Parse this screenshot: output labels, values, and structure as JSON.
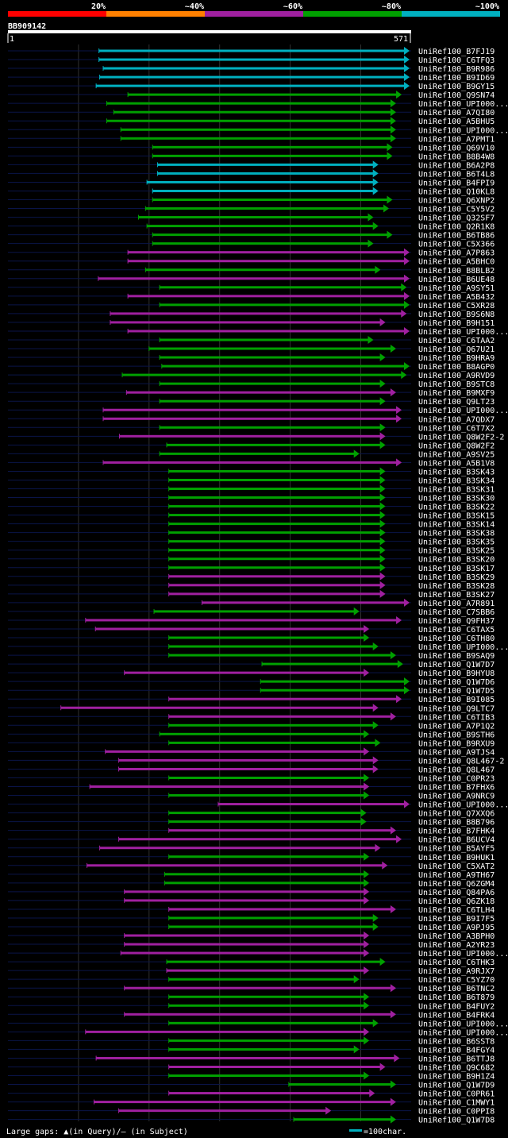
{
  "chart_data": {
    "type": "alignment",
    "query_name": "BB909142",
    "query_start": "1",
    "query_end": "571",
    "identity_legend": [
      {
        "label": "20%",
        "color": "#ff0000"
      },
      {
        "label": "~40%",
        "color": "#ff8000"
      },
      {
        "label": "~60%",
        "color": "#a020a0"
      },
      {
        "label": "~80%",
        "color": "#00a000"
      },
      {
        "label": "~100%",
        "color": "#00b0c0"
      }
    ],
    "footer_gap_text": "Large gaps: ▲(in Query)/– (in Subject)",
    "scale_label": "=100char.",
    "hits": [
      {
        "name": "UniRef100_B7FJ19",
        "start": 129,
        "end": 575,
        "color": "cyan"
      },
      {
        "name": "UniRef100_C6TFQ3",
        "start": 129,
        "end": 575,
        "color": "cyan"
      },
      {
        "name": "UniRef100_B9R986",
        "start": 135,
        "end": 575,
        "color": "cyan"
      },
      {
        "name": "UniRef100_B9ID69",
        "start": 130,
        "end": 575,
        "color": "cyan"
      },
      {
        "name": "UniRef100_B9GY15",
        "start": 125,
        "end": 575,
        "color": "cyan"
      },
      {
        "name": "UniRef100_Q9SN74",
        "start": 170,
        "end": 558,
        "color": "green"
      },
      {
        "name": "UniRef100_UPI000...",
        "start": 140,
        "end": 550,
        "color": "green"
      },
      {
        "name": "UniRef100_A7QI80",
        "start": 150,
        "end": 550,
        "color": "green"
      },
      {
        "name": "UniRef100_A5BHU5",
        "start": 140,
        "end": 550,
        "color": "green"
      },
      {
        "name": "UniRef100_UPI000...",
        "start": 160,
        "end": 550,
        "color": "green"
      },
      {
        "name": "UniRef100_A7PMT1",
        "start": 160,
        "end": 550,
        "color": "green"
      },
      {
        "name": "UniRef100_Q69V10",
        "start": 205,
        "end": 545,
        "color": "green"
      },
      {
        "name": "UniRef100_B8B4W8",
        "start": 205,
        "end": 545,
        "color": "green"
      },
      {
        "name": "UniRef100_B6A2P8",
        "start": 212,
        "end": 525,
        "color": "cyan"
      },
      {
        "name": "UniRef100_B6T4L8",
        "start": 212,
        "end": 525,
        "color": "cyan"
      },
      {
        "name": "UniRef100_B4FPI9",
        "start": 197,
        "end": 525,
        "color": "cyan"
      },
      {
        "name": "UniRef100_Q10KL8",
        "start": 205,
        "end": 525,
        "color": "cyan"
      },
      {
        "name": "UniRef100_Q6XNP2",
        "start": 205,
        "end": 545,
        "color": "green"
      },
      {
        "name": "UniRef100_C5Y5V2",
        "start": 195,
        "end": 540,
        "color": "green"
      },
      {
        "name": "UniRef100_Q32SF7",
        "start": 185,
        "end": 518,
        "color": "green"
      },
      {
        "name": "UniRef100_Q2R1K8",
        "start": 197,
        "end": 525,
        "color": "green"
      },
      {
        "name": "UniRef100_B6TB86",
        "start": 205,
        "end": 545,
        "color": "green"
      },
      {
        "name": "UniRef100_C5X366",
        "start": 205,
        "end": 518,
        "color": "green"
      },
      {
        "name": "UniRef100_A7P863",
        "start": 170,
        "end": 575,
        "color": "purple"
      },
      {
        "name": "UniRef100_A5BHC0",
        "start": 170,
        "end": 575,
        "color": "purple"
      },
      {
        "name": "UniRef100_B8BLB2",
        "start": 195,
        "end": 528,
        "color": "green"
      },
      {
        "name": "UniRef100_B6UE48",
        "start": 128,
        "end": 575,
        "color": "purple"
      },
      {
        "name": "UniRef100_A9SY51",
        "start": 215,
        "end": 565,
        "color": "green"
      },
      {
        "name": "UniRef100_A5B432",
        "start": 170,
        "end": 575,
        "color": "purple"
      },
      {
        "name": "UniRef100_C5XR28",
        "start": 215,
        "end": 575,
        "color": "green"
      },
      {
        "name": "UniRef100_B9S6N8",
        "start": 145,
        "end": 565,
        "color": "purple"
      },
      {
        "name": "UniRef100_B9H151",
        "start": 145,
        "end": 535,
        "color": "purple"
      },
      {
        "name": "UniRef100_UPI000...",
        "start": 170,
        "end": 575,
        "color": "purple"
      },
      {
        "name": "UniRef100_C6TAA2",
        "start": 215,
        "end": 518,
        "color": "green"
      },
      {
        "name": "UniRef100_Q67U21",
        "start": 200,
        "end": 550,
        "color": "green"
      },
      {
        "name": "UniRef100_B9HRA9",
        "start": 215,
        "end": 535,
        "color": "green"
      },
      {
        "name": "UniRef100_B8AGP0",
        "start": 218,
        "end": 575,
        "color": "green"
      },
      {
        "name": "UniRef100_A9RVD9",
        "start": 162,
        "end": 565,
        "color": "green"
      },
      {
        "name": "UniRef100_B9STC8",
        "start": 215,
        "end": 535,
        "color": "green"
      },
      {
        "name": "UniRef100_B9MXF9",
        "start": 168,
        "end": 550,
        "color": "purple"
      },
      {
        "name": "UniRef100_Q9LT23",
        "start": 215,
        "end": 535,
        "color": "green"
      },
      {
        "name": "UniRef100_UPI000...",
        "start": 135,
        "end": 558,
        "color": "purple"
      },
      {
        "name": "UniRef100_A7QDX7",
        "start": 135,
        "end": 558,
        "color": "purple"
      },
      {
        "name": "UniRef100_C6T7X2",
        "start": 215,
        "end": 535,
        "color": "green"
      },
      {
        "name": "UniRef100_Q8W2F2-2",
        "start": 158,
        "end": 535,
        "color": "purple"
      },
      {
        "name": "UniRef100_Q8W2F2",
        "start": 225,
        "end": 535,
        "color": "green"
      },
      {
        "name": "UniRef100_A9SV25",
        "start": 215,
        "end": 498,
        "color": "green"
      },
      {
        "name": "UniRef100_A5B1V8",
        "start": 135,
        "end": 558,
        "color": "purple"
      },
      {
        "name": "UniRef100_B3SK43",
        "start": 228,
        "end": 535,
        "color": "green"
      },
      {
        "name": "UniRef100_B3SK34",
        "start": 228,
        "end": 535,
        "color": "green"
      },
      {
        "name": "UniRef100_B3SK31",
        "start": 228,
        "end": 535,
        "color": "green"
      },
      {
        "name": "UniRef100_B3SK30",
        "start": 228,
        "end": 535,
        "color": "green"
      },
      {
        "name": "UniRef100_B3SK22",
        "start": 228,
        "end": 535,
        "color": "green"
      },
      {
        "name": "UniRef100_B3SK15",
        "start": 228,
        "end": 535,
        "color": "green"
      },
      {
        "name": "UniRef100_B3SK14",
        "start": 228,
        "end": 535,
        "color": "green"
      },
      {
        "name": "UniRef100_B3SK38",
        "start": 228,
        "end": 535,
        "color": "green"
      },
      {
        "name": "UniRef100_B3SK35",
        "start": 228,
        "end": 535,
        "color": "green"
      },
      {
        "name": "UniRef100_B3SK25",
        "start": 228,
        "end": 535,
        "color": "green"
      },
      {
        "name": "UniRef100_B3SK20",
        "start": 228,
        "end": 535,
        "color": "green"
      },
      {
        "name": "UniRef100_B3SK17",
        "start": 228,
        "end": 535,
        "color": "green"
      },
      {
        "name": "UniRef100_B3SK29",
        "start": 228,
        "end": 535,
        "color": "purple"
      },
      {
        "name": "UniRef100_B3SK28",
        "start": 228,
        "end": 535,
        "color": "purple"
      },
      {
        "name": "UniRef100_B3SK27",
        "start": 228,
        "end": 535,
        "color": "purple"
      },
      {
        "name": "UniRef100_A7R891",
        "start": 275,
        "end": 575,
        "color": "purple"
      },
      {
        "name": "UniRef100_C7SBB6",
        "start": 207,
        "end": 498,
        "color": "green"
      },
      {
        "name": "UniRef100_Q9FH37",
        "start": 110,
        "end": 558,
        "color": "purple"
      },
      {
        "name": "UniRef100_C6TAX5",
        "start": 124,
        "end": 512,
        "color": "purple"
      },
      {
        "name": "UniRef100_C6TH80",
        "start": 228,
        "end": 512,
        "color": "green"
      },
      {
        "name": "UniRef100_UPI000...",
        "start": 228,
        "end": 525,
        "color": "green"
      },
      {
        "name": "UniRef100_B9SAQ9",
        "start": 228,
        "end": 550,
        "color": "green"
      },
      {
        "name": "UniRef100_Q1W7D7",
        "start": 360,
        "end": 560,
        "color": "green"
      },
      {
        "name": "UniRef100_B9HYU8",
        "start": 165,
        "end": 512,
        "color": "purple"
      },
      {
        "name": "UniRef100_Q1W7D6",
        "start": 358,
        "end": 570,
        "color": "green"
      },
      {
        "name": "UniRef100_Q1W7D5",
        "start": 358,
        "end": 570,
        "color": "green"
      },
      {
        "name": "UniRef100_B9I085",
        "start": 228,
        "end": 558,
        "color": "purple"
      },
      {
        "name": "UniRef100_Q9LTC7",
        "start": 75,
        "end": 525,
        "color": "purple"
      },
      {
        "name": "UniRef100_C6TIB3",
        "start": 228,
        "end": 550,
        "color": "purple"
      },
      {
        "name": "UniRef100_A7P1Q2",
        "start": 228,
        "end": 525,
        "color": "green"
      },
      {
        "name": "UniRef100_B9STH6",
        "start": 215,
        "end": 512,
        "color": "green"
      },
      {
        "name": "UniRef100_B9RXU9",
        "start": 228,
        "end": 528,
        "color": "green"
      },
      {
        "name": "UniRef100_A9TJS4",
        "start": 138,
        "end": 512,
        "color": "purple"
      },
      {
        "name": "UniRef100_Q8L467-2",
        "start": 157,
        "end": 525,
        "color": "purple"
      },
      {
        "name": "UniRef100_Q8L467",
        "start": 157,
        "end": 525,
        "color": "purple"
      },
      {
        "name": "UniRef100_C0PR23",
        "start": 228,
        "end": 512,
        "color": "green"
      },
      {
        "name": "UniRef100_B7FHX6",
        "start": 116,
        "end": 512,
        "color": "purple"
      },
      {
        "name": "UniRef100_A9NRC9",
        "start": 228,
        "end": 512,
        "color": "green"
      },
      {
        "name": "UniRef100_UPI000...",
        "start": 298,
        "end": 575,
        "color": "purple"
      },
      {
        "name": "UniRef100_Q7XXQ6",
        "start": 228,
        "end": 508,
        "color": "green"
      },
      {
        "name": "UniRef100_B8B796",
        "start": 228,
        "end": 508,
        "color": "green"
      },
      {
        "name": "UniRef100_B7FHK4",
        "start": 228,
        "end": 550,
        "color": "purple"
      },
      {
        "name": "UniRef100_B6UCV4",
        "start": 157,
        "end": 558,
        "color": "purple"
      },
      {
        "name": "UniRef100_B5AYF5",
        "start": 130,
        "end": 528,
        "color": "purple"
      },
      {
        "name": "UniRef100_B9HUK1",
        "start": 228,
        "end": 512,
        "color": "green"
      },
      {
        "name": "UniRef100_C5XAT2",
        "start": 112,
        "end": 538,
        "color": "purple"
      },
      {
        "name": "UniRef100_A9TH67",
        "start": 222,
        "end": 512,
        "color": "green"
      },
      {
        "name": "UniRef100_Q6ZGM4",
        "start": 222,
        "end": 512,
        "color": "green"
      },
      {
        "name": "UniRef100_Q84PA6",
        "start": 165,
        "end": 512,
        "color": "purple"
      },
      {
        "name": "UniRef100_Q6ZK18",
        "start": 165,
        "end": 512,
        "color": "purple"
      },
      {
        "name": "UniRef100_C6TLH4",
        "start": 228,
        "end": 550,
        "color": "purple"
      },
      {
        "name": "UniRef100_B9I7F5",
        "start": 228,
        "end": 525,
        "color": "green"
      },
      {
        "name": "UniRef100_A9PJ95",
        "start": 228,
        "end": 525,
        "color": "green"
      },
      {
        "name": "UniRef100_A3BPH0",
        "start": 165,
        "end": 512,
        "color": "purple"
      },
      {
        "name": "UniRef100_A2YR23",
        "start": 165,
        "end": 512,
        "color": "purple"
      },
      {
        "name": "UniRef100_UPI000...",
        "start": 160,
        "end": 512,
        "color": "purple"
      },
      {
        "name": "UniRef100_C6THK3",
        "start": 225,
        "end": 535,
        "color": "green"
      },
      {
        "name": "UniRef100_A9RJX7",
        "start": 225,
        "end": 512,
        "color": "purple"
      },
      {
        "name": "UniRef100_C5YZ70",
        "start": 228,
        "end": 498,
        "color": "green"
      },
      {
        "name": "UniRef100_B6TNC2",
        "start": 165,
        "end": 550,
        "color": "purple"
      },
      {
        "name": "UniRef100_B6T879",
        "start": 228,
        "end": 512,
        "color": "green"
      },
      {
        "name": "UniRef100_B4FUY2",
        "start": 228,
        "end": 512,
        "color": "green"
      },
      {
        "name": "UniRef100_B4FRK4",
        "start": 165,
        "end": 550,
        "color": "purple"
      },
      {
        "name": "UniRef100_UPI000...",
        "start": 228,
        "end": 525,
        "color": "green"
      },
      {
        "name": "UniRef100_UPI000...",
        "start": 110,
        "end": 512,
        "color": "purple"
      },
      {
        "name": "UniRef100_B6SST8",
        "start": 228,
        "end": 512,
        "color": "green"
      },
      {
        "name": "UniRef100_B4FGY4",
        "start": 228,
        "end": 498,
        "color": "green"
      },
      {
        "name": "UniRef100_B6TTJ8",
        "start": 125,
        "end": 555,
        "color": "purple"
      },
      {
        "name": "UniRef100_Q9C682",
        "start": 228,
        "end": 535,
        "color": "purple"
      },
      {
        "name": "UniRef100_B9H1Z4",
        "start": 228,
        "end": 512,
        "color": "green"
      },
      {
        "name": "UniRef100_Q1W7D9",
        "start": 398,
        "end": 550,
        "color": "green"
      },
      {
        "name": "UniRef100_C0PR61",
        "start": 228,
        "end": 520,
        "color": "purple"
      },
      {
        "name": "UniRef100_C1MWY1",
        "start": 122,
        "end": 550,
        "color": "purple"
      },
      {
        "name": "UniRef100_C0PPI8",
        "start": 157,
        "end": 458,
        "color": "purple"
      },
      {
        "name": "UniRef100_Q1W7D8",
        "start": 405,
        "end": 550,
        "color": "green"
      }
    ]
  }
}
